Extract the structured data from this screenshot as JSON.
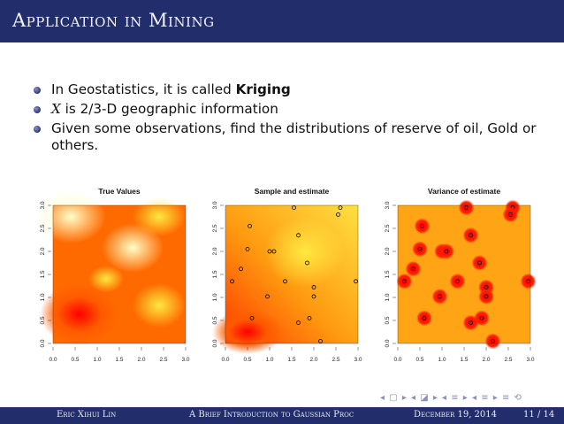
{
  "slide": {
    "title": "Application in Mining"
  },
  "bullets": [
    {
      "pre": "In Geostatistics, it is called ",
      "bold": "Kriging",
      "post": ""
    },
    {
      "ital": "X",
      "post": " is 2/3-D geographic information"
    },
    {
      "pre": "Given some observations, find the distributions of reserve of oil, Gold or others."
    }
  ],
  "nav_symbols": "◂ ▢ ▸ ◂ ◪ ▸ ◂ ≡ ▸ ◂ ≡ ▸ ≡ ⟲",
  "footer": {
    "author": "Eric Xihui Lin",
    "talk_title": "A Brief Introduction to Gaussian Proc",
    "date": "December 19, 2014",
    "page": "11 / 14"
  },
  "colors": {
    "header_bg": "#222e6b",
    "footer_bg": "#222e6b",
    "heat_low": "#ff0000",
    "heat_high": "#ffffe0"
  },
  "chart_data": [
    {
      "type": "heatmap",
      "title": "True Values",
      "xlim": [
        0,
        3
      ],
      "ylim": [
        0,
        3
      ],
      "xticks": [
        "0.0",
        "0.5",
        "1.0",
        "1.5",
        "2.0",
        "2.5",
        "3.0"
      ],
      "yticks": [
        "0.0",
        "0.5",
        "1.0",
        "1.5",
        "2.0",
        "2.5",
        "3.0"
      ],
      "colormap": "heat",
      "grid": false
    },
    {
      "type": "heatmap",
      "title": "Sample and estimate",
      "xlim": [
        0,
        3
      ],
      "ylim": [
        0,
        3
      ],
      "xticks": [
        "0.0",
        "0.5",
        "1.0",
        "1.5",
        "2.0",
        "2.5",
        "3.0"
      ],
      "yticks": [
        "0.0",
        "0.5",
        "1.0",
        "1.5",
        "2.0",
        "2.5",
        "3.0"
      ],
      "colormap": "heat",
      "grid": false,
      "points": [
        {
          "x": 1.55,
          "y": 2.95
        },
        {
          "x": 2.6,
          "y": 2.95
        },
        {
          "x": 2.55,
          "y": 2.8
        },
        {
          "x": 0.55,
          "y": 2.55
        },
        {
          "x": 1.65,
          "y": 2.35
        },
        {
          "x": 0.5,
          "y": 2.05
        },
        {
          "x": 1.0,
          "y": 2.0
        },
        {
          "x": 1.1,
          "y": 2.0
        },
        {
          "x": 1.85,
          "y": 1.75
        },
        {
          "x": 0.35,
          "y": 1.62
        },
        {
          "x": 0.15,
          "y": 1.35
        },
        {
          "x": 1.35,
          "y": 1.35
        },
        {
          "x": 2.0,
          "y": 1.22
        },
        {
          "x": 2.0,
          "y": 1.02
        },
        {
          "x": 0.95,
          "y": 1.02
        },
        {
          "x": 2.95,
          "y": 1.35
        },
        {
          "x": 0.6,
          "y": 0.55
        },
        {
          "x": 1.9,
          "y": 0.55
        },
        {
          "x": 1.65,
          "y": 0.45
        },
        {
          "x": 2.15,
          "y": 0.05
        }
      ]
    },
    {
      "type": "heatmap",
      "title": "Variance of estimate",
      "xlim": [
        0,
        3
      ],
      "ylim": [
        0,
        3
      ],
      "xticks": [
        "0.0",
        "0.5",
        "1.0",
        "1.5",
        "2.0",
        "2.5",
        "3.0"
      ],
      "yticks": [
        "0.0",
        "0.5",
        "1.0",
        "1.5",
        "2.0",
        "2.5",
        "3.0"
      ],
      "colormap": "heat",
      "grid": false
    }
  ]
}
